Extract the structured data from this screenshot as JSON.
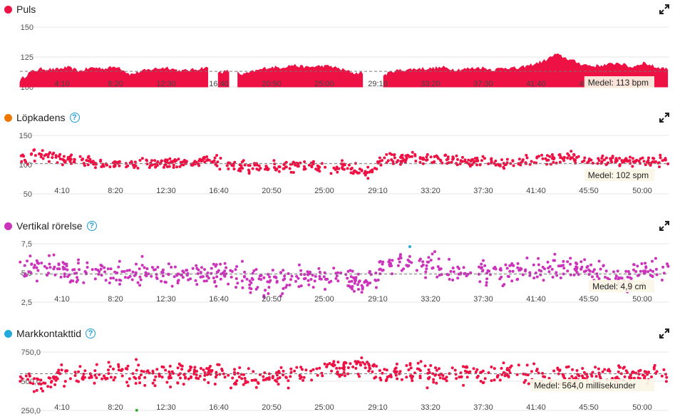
{
  "icons": {
    "help": "help-icon",
    "expand": "expand-icon"
  },
  "colors": {
    "heart": "#ee1144",
    "cadence": "#ee7700",
    "vertical": "#cc33bb",
    "contact": "#22aadd",
    "pointRed": "#ee1144",
    "pointBlue": "#22aadd",
    "pointMagenta": "#cc33bb",
    "pointGreen": "#33aa33"
  },
  "x_ticks": [
    "4:10",
    "8:20",
    "12:30",
    "16:40",
    "20:50",
    "25:00",
    "29:10",
    "33:20",
    "37:30",
    "41:40",
    "45:50",
    "50:00"
  ],
  "panels": [
    {
      "key": "hr",
      "title": "Puls",
      "has_help": false,
      "mean_label": "Medel: 113 bpm"
    },
    {
      "key": "cad",
      "title": "Löpkadens",
      "has_help": true,
      "mean_label": "Medel: 102 spm"
    },
    {
      "key": "vo",
      "title": "Vertikal rörelse",
      "has_help": true,
      "mean_label": "Medel: 4,9 cm"
    },
    {
      "key": "gct",
      "title": "Markkontakttid",
      "has_help": true,
      "mean_label": "Medel: 564,0 millisekunder"
    }
  ],
  "chart_data": [
    {
      "type": "area",
      "title": "Puls",
      "y_unit": "bpm",
      "xlim_minutes": [
        1.2,
        53.0
      ],
      "ylim": [
        100,
        150
      ],
      "y_ticks": [
        100,
        125,
        150
      ],
      "mean": 113,
      "gaps_minutes": [
        [
          16.2,
          17.0
        ],
        [
          17.9,
          18.5
        ],
        [
          28.6,
          30.2
        ]
      ],
      "x_minutes": [
        1.2,
        2,
        3,
        4,
        5,
        6,
        7,
        8,
        9,
        10,
        11,
        12,
        13,
        14,
        15,
        16,
        17,
        18,
        19,
        20,
        21,
        22,
        23,
        24,
        25,
        26,
        27,
        28,
        29,
        30,
        31,
        32,
        33,
        34,
        35,
        36,
        37,
        38,
        39,
        40,
        41,
        42,
        43,
        44,
        45,
        46,
        47,
        48,
        49,
        50,
        51,
        52,
        53
      ],
      "values": [
        105,
        112,
        115,
        114,
        116,
        113,
        116,
        115,
        117,
        110,
        113,
        115,
        116,
        113,
        114,
        116,
        112,
        113,
        110,
        113,
        116,
        116,
        118,
        116,
        117,
        117,
        114,
        111,
        112,
        108,
        113,
        114,
        115,
        115,
        116,
        114,
        115,
        116,
        114,
        116,
        115,
        118,
        121,
        127,
        123,
        119,
        117,
        118,
        120,
        116,
        120,
        116,
        115
      ]
    },
    {
      "type": "scatter",
      "title": "Löpkadens",
      "y_unit": "spm",
      "xlim_minutes": [
        1.2,
        53.0
      ],
      "ylim": [
        50,
        150
      ],
      "y_ticks": [
        50,
        100,
        150
      ],
      "mean": 102,
      "x_minutes": [
        1.2,
        3,
        5,
        7,
        9,
        11,
        13,
        15,
        17,
        19,
        20,
        21,
        23,
        25,
        27,
        28,
        29,
        30,
        31,
        33,
        35,
        37,
        39,
        41,
        43,
        45,
        47,
        49,
        51,
        53
      ],
      "values": [
        108,
        115,
        110,
        104,
        100,
        103,
        102,
        105,
        104,
        98,
        94,
        96,
        97,
        96,
        96,
        92,
        85,
        108,
        110,
        110,
        108,
        104,
        103,
        102,
        110,
        112,
        108,
        106,
        104,
        106
      ],
      "spread": 14
    },
    {
      "type": "scatter",
      "title": "Vertikal rörelse",
      "y_unit": "cm",
      "xlim_minutes": [
        1.2,
        53.0
      ],
      "ylim": [
        2.5,
        7.5
      ],
      "y_ticks": [
        "2,5",
        "5,0",
        "7,5"
      ],
      "mean": 4.9,
      "high_threshold": 6.9,
      "x_minutes": [
        1.2,
        3,
        5,
        7,
        9,
        11,
        13,
        15,
        17,
        19,
        20,
        21,
        23,
        25,
        27,
        28,
        29,
        30,
        31,
        33,
        35,
        37,
        39,
        41,
        43,
        45,
        47,
        49,
        51,
        53
      ],
      "values": [
        5.8,
        5.6,
        5.0,
        5.0,
        4.9,
        5.0,
        4.8,
        5.0,
        4.9,
        4.6,
        4.3,
        4.2,
        4.5,
        4.7,
        4.6,
        4.2,
        3.9,
        5.6,
        5.8,
        5.9,
        5.2,
        5.0,
        4.8,
        5.0,
        5.2,
        5.5,
        5.2,
        4.7,
        4.9,
        5.1
      ],
      "spread": 1.6
    },
    {
      "type": "scatter",
      "title": "Markkontakttid",
      "y_unit": "millisekunder",
      "xlim_minutes": [
        1.2,
        53.0
      ],
      "ylim": [
        250,
        750
      ],
      "y_ticks": [
        "250,0",
        "500,0",
        "750,0"
      ],
      "mean": 564.0,
      "x_minutes": [
        1.2,
        3,
        5,
        7,
        9,
        11,
        13,
        15,
        17,
        19,
        20,
        21,
        23,
        25,
        27,
        28,
        29,
        30,
        31,
        33,
        35,
        37,
        39,
        41,
        43,
        45,
        47,
        49,
        51,
        53
      ],
      "values": [
        520,
        470,
        570,
        560,
        580,
        570,
        560,
        570,
        560,
        550,
        540,
        520,
        560,
        580,
        600,
        620,
        640,
        560,
        570,
        560,
        560,
        570,
        570,
        560,
        540,
        540,
        540,
        550,
        560,
        560
      ],
      "spread": 130
    }
  ]
}
